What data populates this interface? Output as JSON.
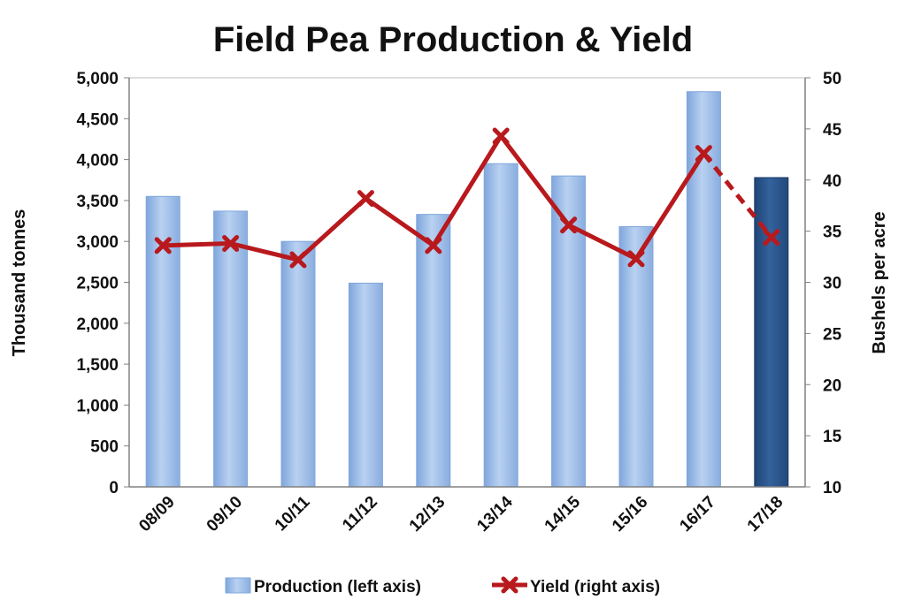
{
  "chart_data": {
    "type": "bar",
    "title": "Field Pea Production & Yield",
    "categories": [
      "08/09",
      "09/10",
      "10/11",
      "11/12",
      "12/13",
      "13/14",
      "14/15",
      "15/16",
      "16/17",
      "17/18"
    ],
    "series": [
      {
        "name": "Production (left axis)",
        "type": "bar",
        "axis": "left",
        "values": [
          3550,
          3370,
          3000,
          2490,
          3330,
          3950,
          3800,
          3180,
          4830,
          3780
        ],
        "color": "#95b8e6",
        "highlight_color": "#2a5287",
        "highlight_index": 9
      },
      {
        "name": "Yield (right axis)",
        "type": "line",
        "axis": "right",
        "values": [
          33.6,
          33.8,
          32.2,
          38.2,
          33.6,
          44.3,
          35.6,
          32.3,
          42.6,
          34.4
        ],
        "color": "#b8191d",
        "dashed_last_segment": true
      }
    ],
    "ylabel": "Thousand tonnes",
    "y2label": "Bushels per acre",
    "ylim": [
      0,
      5000
    ],
    "y2lim": [
      10,
      50
    ],
    "yticks": [
      "0",
      "500",
      "1,000",
      "1,500",
      "2,000",
      "2,500",
      "3,000",
      "3,500",
      "4,000",
      "4,500",
      "5,000"
    ],
    "y2ticks": [
      "10",
      "15",
      "20",
      "25",
      "30",
      "35",
      "40",
      "45",
      "50"
    ],
    "legend": [
      {
        "label": "Production (left axis)",
        "kind": "bar"
      },
      {
        "label": "Yield (right axis)",
        "kind": "line"
      }
    ],
    "legend_position": "bottom"
  }
}
